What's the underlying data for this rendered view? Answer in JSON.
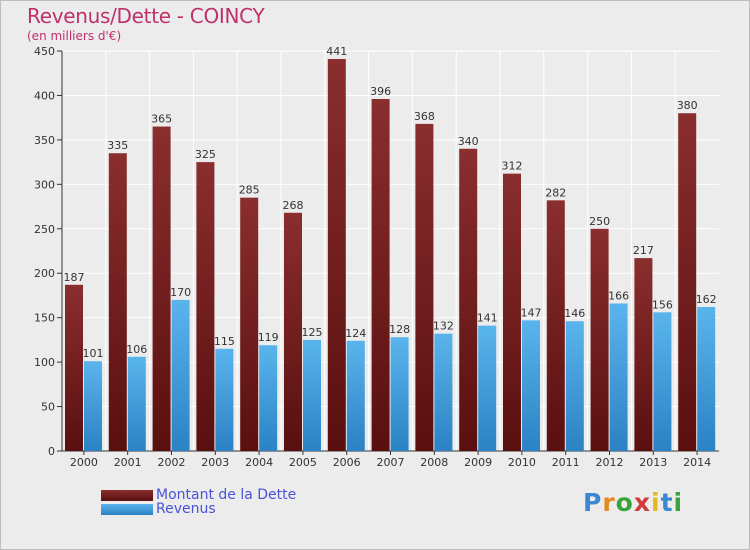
{
  "title": "Revenus/Dette - COINCY",
  "subtitle": "(en milliers d'€)",
  "colors": {
    "title": "#c0306a",
    "debt_bar_top": "#8a2e2e",
    "debt_bar_bottom": "#5a0f0f",
    "revenue_bar_top": "#5ab4ec",
    "revenue_bar_bottom": "#2b82c4",
    "legend_text": "#4a52d8",
    "background": "#ececec"
  },
  "chart_data": {
    "type": "bar",
    "categories": [
      "2000",
      "2001",
      "2002",
      "2003",
      "2004",
      "2005",
      "2006",
      "2007",
      "2008",
      "2009",
      "2010",
      "2011",
      "2012",
      "2013",
      "2014"
    ],
    "series": [
      {
        "name": "Montant de la Dette",
        "values": [
          187,
          335,
          365,
          325,
          285,
          268,
          441,
          396,
          368,
          340,
          312,
          282,
          250,
          217,
          380
        ]
      },
      {
        "name": "Revenus",
        "values": [
          101,
          106,
          170,
          115,
          119,
          125,
          124,
          128,
          132,
          141,
          147,
          146,
          166,
          156,
          162
        ]
      }
    ],
    "ylim": [
      0,
      450
    ],
    "yticks": [
      0,
      50,
      100,
      150,
      200,
      250,
      300,
      350,
      400,
      450
    ],
    "grid": true,
    "legend_position": "bottom-left"
  },
  "legend": {
    "debt_label": "Montant de la Dette",
    "revenue_label": "Revenus"
  },
  "logo": {
    "letters": [
      "P",
      "r",
      "o",
      "x",
      "i",
      "t",
      "i"
    ],
    "colors": [
      "#3a88d0",
      "#e68a1e",
      "#3aa23a",
      "#d23a3a",
      "#e6b81e",
      "#3a88d0",
      "#3aa23a"
    ]
  }
}
